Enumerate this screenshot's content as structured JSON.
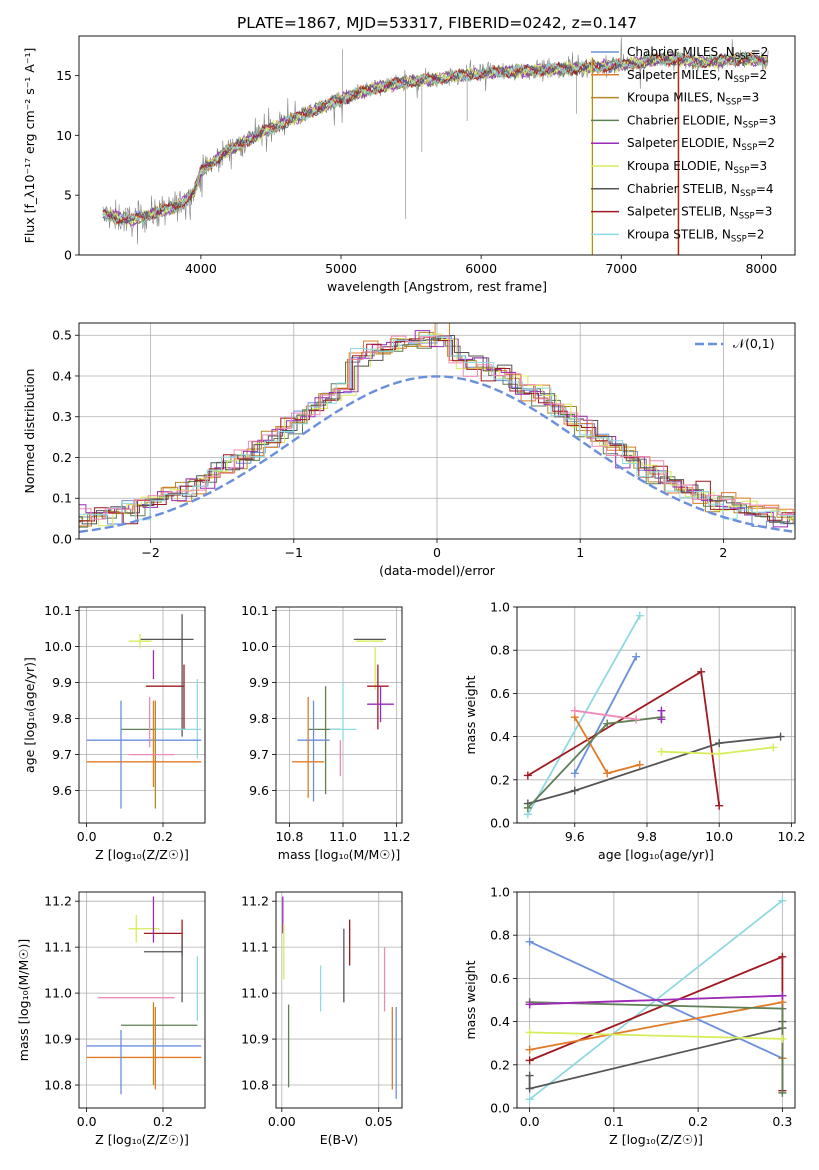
{
  "colors": {
    "chabrier_miles": "#6a8fdc",
    "salpeter_miles": "#e07b28",
    "kroupa_miles": "#b08a22",
    "chabrier_elodie": "#5f7f55",
    "salpeter_elodie": "#9a2bb8",
    "kroupa_elodie": "#d8ec5a",
    "chabrier_stelib": "#555555",
    "salpeter_stelib": "#a01820",
    "kroupa_stelib": "#8fd9e0",
    "pink": "#ef8ab8",
    "spectrum": "#808080",
    "normal_curve": "#6a8fdc"
  },
  "chart_data": [
    {
      "id": "spectrum",
      "type": "line",
      "title": "PLATE=1867, MJD=53317, FIBERID=0242, z=0.147",
      "xlabel": "wavelength [Angstrom, rest frame]",
      "ylabel": "Flux [f_λ10⁻¹⁷ erg cm⁻² s⁻¹ A⁻¹]",
      "xlim": [
        3130,
        8240
      ],
      "ylim": [
        0,
        18.3
      ],
      "xticks": [
        4000,
        5000,
        6000,
        7000,
        8000
      ],
      "yticks": [
        0,
        5,
        10,
        15
      ],
      "grid": false,
      "legend_position": "top-right",
      "legend": [
        {
          "label": "Chabrier MILES, N",
          "sub": "SSP",
          "suffix": "=2",
          "color_key": "chabrier_miles"
        },
        {
          "label": "Salpeter MILES, N",
          "sub": "SSP",
          "suffix": "=2",
          "color_key": "salpeter_miles"
        },
        {
          "label": "Kroupa MILES, N",
          "sub": "SSP",
          "suffix": "=3",
          "color_key": "kroupa_miles"
        },
        {
          "label": "Chabrier ELODIE, N",
          "sub": "SSP",
          "suffix": "=3",
          "color_key": "chabrier_elodie"
        },
        {
          "label": "Salpeter ELODIE, N",
          "sub": "SSP",
          "suffix": "=2",
          "color_key": "salpeter_elodie"
        },
        {
          "label": "Kroupa ELODIE, N",
          "sub": "SSP",
          "suffix": "=3",
          "color_key": "kroupa_elodie"
        },
        {
          "label": "Chabrier STELIB, N",
          "sub": "SSP",
          "suffix": "=4",
          "color_key": "chabrier_stelib"
        },
        {
          "label": "Salpeter STELIB, N",
          "sub": "SSP",
          "suffix": "=3",
          "color_key": "salpeter_stelib"
        },
        {
          "label": "Kroupa STELIB, N",
          "sub": "SSP",
          "suffix": "=2",
          "color_key": "kroupa_stelib"
        }
      ],
      "continuum": [
        [
          3300,
          3.4
        ],
        [
          3500,
          2.9
        ],
        [
          3700,
          3.6
        ],
        [
          3850,
          4.2
        ],
        [
          3950,
          5.2
        ],
        [
          4000,
          7.0
        ],
        [
          4150,
          8.4
        ],
        [
          4300,
          9.4
        ],
        [
          4500,
          10.6
        ],
        [
          4750,
          11.8
        ],
        [
          5000,
          13.0
        ],
        [
          5250,
          14.0
        ],
        [
          5500,
          14.5
        ],
        [
          5800,
          14.9
        ],
        [
          6100,
          15.3
        ],
        [
          6500,
          15.5
        ],
        [
          6800,
          15.7
        ],
        [
          7000,
          15.9
        ],
        [
          7250,
          16.3
        ],
        [
          7400,
          16.4
        ],
        [
          7600,
          16.1
        ],
        [
          7800,
          16.4
        ],
        [
          8050,
          16.2
        ]
      ],
      "vertical_lines": [
        {
          "x": 6790,
          "color_key": "kroupa_elodie"
        },
        {
          "x": 6795,
          "color_key": "kroupa_miles"
        },
        {
          "x": 7405,
          "color_key": "salpeter_miles"
        },
        {
          "x": 7410,
          "color_key": "salpeter_stelib"
        }
      ]
    },
    {
      "id": "residual_histogram",
      "type": "histogram",
      "xlabel": "(data-model)/error",
      "ylabel": "Normed distribution",
      "xlim": [
        -2.5,
        2.5
      ],
      "ylim": [
        0,
        0.53
      ],
      "xticks": [
        -2,
        -1,
        0,
        1,
        2
      ],
      "yticks": [
        0.0,
        0.1,
        0.2,
        0.3,
        0.4,
        0.5
      ],
      "grid": true,
      "legend_position": "top-right",
      "legend_label": "𝒩(0,1)",
      "normal_curve": {
        "mean": 0,
        "sigma": 1
      }
    },
    {
      "id": "age_vs_z",
      "type": "errorbar",
      "xlabel": "Z [log₁₀(Z/Z☉)]",
      "ylabel": "age  [log₁₀(age/yr)]",
      "xlim": [
        -0.02,
        0.31
      ],
      "ylim": [
        9.51,
        10.11
      ],
      "xticks": [
        0.0,
        0.2
      ],
      "yticks": [
        9.6,
        9.7,
        9.8,
        9.9,
        10.0,
        10.1
      ],
      "grid": true,
      "points": [
        {
          "x": 0.21,
          "y": 10.02,
          "xerr": 0.07,
          "yerr": 0.0,
          "color_key": "chabrier_stelib"
        },
        {
          "x": 0.14,
          "y": 10.015,
          "xerr": 0.03,
          "yerr": 0.02,
          "color_key": "kroupa_elodie"
        },
        {
          "x": 0.175,
          "y": 9.95,
          "xerr": 0.0,
          "yerr": 0.04,
          "color_key": "salpeter_elodie"
        },
        {
          "x": 0.205,
          "y": 9.89,
          "xerr": 0.05,
          "yerr": 0.0,
          "color_key": "salpeter_stelib"
        },
        {
          "x": 0.25,
          "y": 9.92,
          "xerr": 0.0,
          "yerr": 0.17,
          "color_key": "chabrier_stelib"
        },
        {
          "x": 0.255,
          "y": 9.86,
          "xerr": 0.0,
          "yerr": 0.09,
          "color_key": "salpeter_stelib"
        },
        {
          "x": 0.175,
          "y": 9.77,
          "xerr": 0.085,
          "yerr": 0.0,
          "color_key": "chabrier_elodie"
        },
        {
          "x": 0.24,
          "y": 9.77,
          "xerr": 0.06,
          "yerr": 0.0,
          "color_key": "kroupa_stelib"
        },
        {
          "x": 0.29,
          "y": 9.8,
          "xerr": 0.0,
          "yerr": 0.11,
          "color_key": "kroupa_stelib"
        },
        {
          "x": 0.15,
          "y": 9.74,
          "xerr": 0.15,
          "yerr": 0.0,
          "color_key": "chabrier_miles"
        },
        {
          "x": 0.09,
          "y": 9.7,
          "xerr": 0.0,
          "yerr": 0.15,
          "color_key": "chabrier_miles"
        },
        {
          "x": 0.18,
          "y": 9.7,
          "xerr": 0.0,
          "yerr": 0.15,
          "color_key": "kroupa_miles"
        },
        {
          "x": 0.15,
          "y": 9.68,
          "xerr": 0.15,
          "yerr": 0.0,
          "color_key": "salpeter_miles"
        },
        {
          "x": 0.175,
          "y": 9.73,
          "xerr": 0.0,
          "yerr": 0.12,
          "color_key": "salpeter_miles"
        },
        {
          "x": 0.17,
          "y": 9.7,
          "xerr": 0.06,
          "yerr": 0.0,
          "color_key": "pink"
        },
        {
          "x": 0.165,
          "y": 9.79,
          "xerr": 0.0,
          "yerr": 0.07,
          "color_key": "pink"
        }
      ]
    },
    {
      "id": "age_vs_mass",
      "type": "errorbar",
      "xlabel": "mass [log₁₀(M/M☉)]",
      "xlim": [
        10.75,
        11.22
      ],
      "ylim": [
        9.51,
        10.11
      ],
      "xticks": [
        10.8,
        11.0,
        11.2
      ],
      "yticks": [
        9.6,
        9.7,
        9.8,
        9.9,
        10.0,
        10.1
      ],
      "grid": true,
      "points": [
        {
          "x": 11.1,
          "y": 10.02,
          "xerr": 0.06,
          "yerr": 0.0,
          "color_key": "chabrier_stelib"
        },
        {
          "x": 11.1,
          "y": 10.015,
          "xerr": 0.05,
          "yerr": 0.0,
          "color_key": "kroupa_elodie"
        },
        {
          "x": 11.12,
          "y": 9.94,
          "xerr": 0.0,
          "yerr": 0.06,
          "color_key": "kroupa_elodie"
        },
        {
          "x": 11.13,
          "y": 9.89,
          "xerr": 0.04,
          "yerr": 0.0,
          "color_key": "salpeter_stelib"
        },
        {
          "x": 11.13,
          "y": 9.86,
          "xerr": 0.0,
          "yerr": 0.09,
          "color_key": "salpeter_stelib"
        },
        {
          "x": 11.14,
          "y": 9.84,
          "xerr": 0.05,
          "yerr": 0.0,
          "color_key": "salpeter_elodie"
        },
        {
          "x": 11.14,
          "y": 9.84,
          "xerr": 0.0,
          "yerr": 0.05,
          "color_key": "salpeter_elodie"
        },
        {
          "x": 10.93,
          "y": 9.77,
          "xerr": 0.06,
          "yerr": 0.0,
          "color_key": "chabrier_elodie"
        },
        {
          "x": 10.935,
          "y": 9.74,
          "xerr": 0.0,
          "yerr": 0.15,
          "color_key": "chabrier_elodie"
        },
        {
          "x": 11.0,
          "y": 9.77,
          "xerr": 0.05,
          "yerr": 0.0,
          "color_key": "kroupa_stelib"
        },
        {
          "x": 11.0,
          "y": 9.82,
          "xerr": 0.0,
          "yerr": 0.08,
          "color_key": "kroupa_stelib"
        },
        {
          "x": 10.89,
          "y": 9.74,
          "xerr": 0.06,
          "yerr": 0.0,
          "color_key": "chabrier_miles"
        },
        {
          "x": 10.89,
          "y": 9.71,
          "xerr": 0.0,
          "yerr": 0.14,
          "color_key": "chabrier_miles"
        },
        {
          "x": 10.87,
          "y": 9.68,
          "xerr": 0.06,
          "yerr": 0.0,
          "color_key": "salpeter_miles"
        },
        {
          "x": 10.87,
          "y": 9.72,
          "xerr": 0.0,
          "yerr": 0.14,
          "color_key": "salpeter_miles"
        },
        {
          "x": 10.99,
          "y": 9.69,
          "xerr": 0.0,
          "yerr": 0.05,
          "color_key": "pink"
        }
      ]
    },
    {
      "id": "mass_weight_vs_age",
      "type": "line",
      "xlabel": "age  [log₁₀(age/yr)]",
      "ylabel": "mass weight",
      "xlim": [
        9.44,
        10.21
      ],
      "ylim": [
        0.0,
        1.0
      ],
      "xticks": [
        9.6,
        9.8,
        10.0,
        10.2
      ],
      "yticks": [
        0.0,
        0.2,
        0.4,
        0.6,
        0.8,
        1.0
      ],
      "grid": true,
      "series": [
        {
          "color_key": "kroupa_stelib",
          "x": [
            9.47,
            9.78
          ],
          "y": [
            0.04,
            0.96
          ]
        },
        {
          "color_key": "chabrier_miles",
          "x": [
            9.6,
            9.77
          ],
          "y": [
            0.23,
            0.77
          ]
        },
        {
          "color_key": "salpeter_stelib",
          "x": [
            9.47,
            9.95,
            10.0
          ],
          "y": [
            0.22,
            0.7,
            0.08
          ]
        },
        {
          "color_key": "chabrier_stelib",
          "x": [
            9.47,
            9.6,
            10.0,
            10.17
          ],
          "y": [
            0.09,
            0.15,
            0.37,
            0.4
          ]
        },
        {
          "color_key": "salpeter_miles",
          "x": [
            9.6,
            9.69,
            9.78
          ],
          "y": [
            0.49,
            0.23,
            0.27
          ]
        },
        {
          "color_key": "chabrier_elodie",
          "x": [
            9.47,
            9.69,
            9.84
          ],
          "y": [
            0.07,
            0.46,
            0.49
          ]
        },
        {
          "color_key": "pink",
          "x": [
            9.6,
            9.77
          ],
          "y": [
            0.52,
            0.48
          ]
        },
        {
          "color_key": "salpeter_elodie",
          "x": [
            9.84,
            9.84
          ],
          "y": [
            0.48,
            0.52
          ]
        },
        {
          "color_key": "kroupa_elodie",
          "x": [
            9.84,
            10.0,
            10.15
          ],
          "y": [
            0.33,
            0.32,
            0.35
          ]
        }
      ]
    },
    {
      "id": "mass_vs_z",
      "type": "errorbar",
      "xlabel": "Z [log₁₀(Z/Z☉)]",
      "ylabel": "mass [log₁₀(M/M☉)]",
      "xlim": [
        -0.02,
        0.31
      ],
      "ylim": [
        10.75,
        11.22
      ],
      "xticks": [
        0.0,
        0.2
      ],
      "yticks": [
        10.8,
        10.9,
        11.0,
        11.1,
        11.2
      ],
      "grid": true,
      "points": [
        {
          "x": 0.13,
          "y": 11.14,
          "xerr": 0.0,
          "yerr": 0.03,
          "color_key": "kroupa_elodie"
        },
        {
          "x": 0.15,
          "y": 11.14,
          "xerr": 0.04,
          "yerr": 0.0,
          "color_key": "kroupa_elodie"
        },
        {
          "x": 0.2,
          "y": 11.13,
          "xerr": 0.05,
          "yerr": 0.0,
          "color_key": "salpeter_stelib"
        },
        {
          "x": 0.175,
          "y": 11.16,
          "xerr": 0.0,
          "yerr": 0.05,
          "color_key": "salpeter_elodie"
        },
        {
          "x": 0.25,
          "y": 11.12,
          "xerr": 0.0,
          "yerr": 0.04,
          "color_key": "salpeter_stelib"
        },
        {
          "x": 0.2,
          "y": 11.09,
          "xerr": 0.05,
          "yerr": 0.0,
          "color_key": "chabrier_stelib"
        },
        {
          "x": 0.25,
          "y": 11.05,
          "xerr": 0.0,
          "yerr": 0.07,
          "color_key": "chabrier_stelib"
        },
        {
          "x": 0.29,
          "y": 11.01,
          "xerr": 0.0,
          "yerr": 0.07,
          "color_key": "kroupa_stelib"
        },
        {
          "x": 0.13,
          "y": 10.99,
          "xerr": 0.1,
          "yerr": 0.0,
          "color_key": "pink"
        },
        {
          "x": 0.19,
          "y": 10.93,
          "xerr": 0.1,
          "yerr": 0.0,
          "color_key": "chabrier_elodie"
        },
        {
          "x": 0.175,
          "y": 10.89,
          "xerr": 0.0,
          "yerr": 0.09,
          "color_key": "kroupa_miles"
        },
        {
          "x": 0.18,
          "y": 10.88,
          "xerr": 0.0,
          "yerr": 0.09,
          "color_key": "salpeter_miles"
        },
        {
          "x": 0.15,
          "y": 10.885,
          "xerr": 0.15,
          "yerr": 0.0,
          "color_key": "chabrier_miles"
        },
        {
          "x": 0.15,
          "y": 10.86,
          "xerr": 0.15,
          "yerr": 0.0,
          "color_key": "salpeter_miles"
        },
        {
          "x": 0.09,
          "y": 10.85,
          "xerr": 0.0,
          "yerr": 0.07,
          "color_key": "chabrier_miles"
        }
      ]
    },
    {
      "id": "mass_vs_ebv",
      "type": "errorbar",
      "xlabel": "E(B-V)",
      "xlim": [
        -0.003,
        0.062
      ],
      "ylim": [
        10.75,
        11.22
      ],
      "xticks": [
        0.0,
        0.05
      ],
      "yticks": [
        10.8,
        10.9,
        11.0,
        11.1,
        11.2
      ],
      "grid": true,
      "points": [
        {
          "x": 0.0005,
          "y": 11.17,
          "xerr": 0.0,
          "yerr": 0.04,
          "color_key": "salpeter_elodie"
        },
        {
          "x": 0.001,
          "y": 11.09,
          "xerr": 0.0,
          "yerr": 0.06,
          "color_key": "kroupa_elodie"
        },
        {
          "x": 0.035,
          "y": 11.11,
          "xerr": 0.0,
          "yerr": 0.05,
          "color_key": "salpeter_stelib"
        },
        {
          "x": 0.032,
          "y": 11.06,
          "xerr": 0.0,
          "yerr": 0.08,
          "color_key": "chabrier_stelib"
        },
        {
          "x": 0.02,
          "y": 11.01,
          "xerr": 0.0,
          "yerr": 0.05,
          "color_key": "kroupa_stelib"
        },
        {
          "x": 0.053,
          "y": 11.03,
          "xerr": 0.0,
          "yerr": 0.07,
          "color_key": "pink"
        },
        {
          "x": 0.0035,
          "y": 10.885,
          "xerr": 0.0,
          "yerr": 0.09,
          "color_key": "chabrier_elodie"
        },
        {
          "x": 0.057,
          "y": 10.88,
          "xerr": 0.0,
          "yerr": 0.09,
          "color_key": "salpeter_miles"
        },
        {
          "x": 0.059,
          "y": 10.87,
          "xerr": 0.0,
          "yerr": 0.1,
          "color_key": "chabrier_miles"
        }
      ]
    },
    {
      "id": "mass_weight_vs_z",
      "type": "line",
      "xlabel": "Z [log₁₀(Z/Z☉)]",
      "ylabel": "mass weight",
      "xlim": [
        -0.015,
        0.315
      ],
      "ylim": [
        0.0,
        1.0
      ],
      "xticks": [
        0.0,
        0.1,
        0.2,
        0.3
      ],
      "yticks": [
        0.0,
        0.2,
        0.4,
        0.6,
        0.8,
        1.0
      ],
      "grid": true,
      "series": [
        {
          "color_key": "kroupa_stelib",
          "x": [
            0.0,
            0.3
          ],
          "y": [
            0.04,
            0.96
          ]
        },
        {
          "color_key": "chabrier_miles",
          "x": [
            0.0,
            0.3
          ],
          "y": [
            0.77,
            0.23
          ]
        },
        {
          "color_key": "salpeter_stelib",
          "x": [
            0.0,
            0.3,
            0.3
          ],
          "y": [
            0.22,
            0.7,
            0.08
          ]
        },
        {
          "color_key": "chabrier_stelib",
          "x": [
            0.0,
            0.0,
            0.3,
            0.3
          ],
          "y": [
            0.15,
            0.09,
            0.37,
            0.4
          ]
        },
        {
          "color_key": "salpeter_miles",
          "x": [
            0.0,
            0.3,
            0.3
          ],
          "y": [
            0.27,
            0.49,
            0.23
          ]
        },
        {
          "color_key": "chabrier_elodie",
          "x": [
            0.0,
            0.3,
            0.3
          ],
          "y": [
            0.49,
            0.46,
            0.07
          ]
        },
        {
          "color_key": "pink",
          "x": [
            0.0,
            0.3
          ],
          "y": [
            0.48,
            0.52
          ]
        },
        {
          "color_key": "salpeter_elodie",
          "x": [
            0.0,
            0.3
          ],
          "y": [
            0.48,
            0.52
          ]
        },
        {
          "color_key": "kroupa_elodie",
          "x": [
            0.0,
            0.3
          ],
          "y": [
            0.35,
            0.32
          ]
        }
      ]
    }
  ]
}
